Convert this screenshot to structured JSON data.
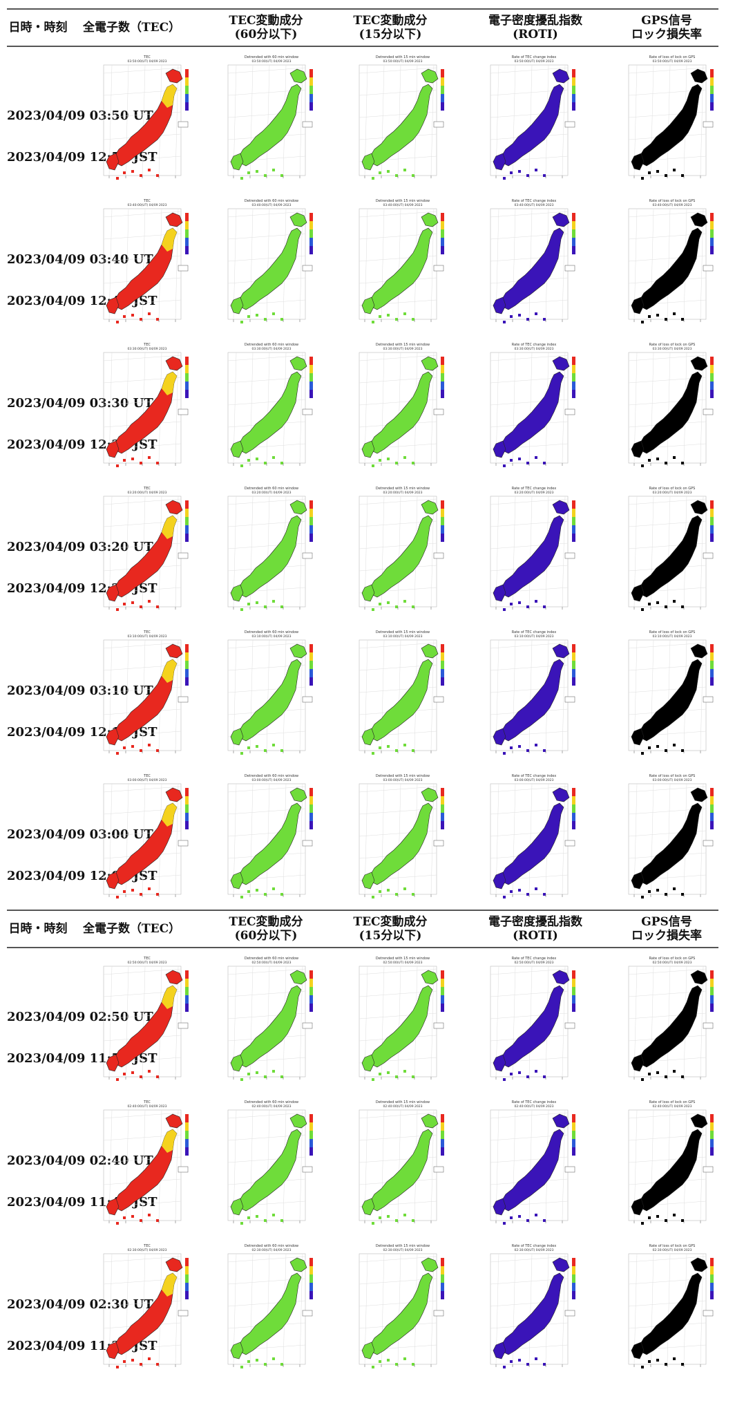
{
  "header": {
    "datetime": "日時・時刻",
    "tec": "全電子数（TEC）",
    "tec60_l1": "TEC変動成分",
    "tec60_l2": "(60分以下)",
    "tec15_l1": "TEC変動成分",
    "tec15_l2": "(15分以下)",
    "roti_l1": "電子密度擾乱指数",
    "roti_l2": "(ROTI)",
    "gps_l1": "GPS信号",
    "gps_l2": "ロック損失率"
  },
  "map_titles": {
    "tec": "TEC",
    "tec60": "Detrended with 60 min window",
    "tec15": "Detrended with 15 min window",
    "roti": "Rate of TEC change index",
    "gps": "Rate of loss of lock on GPS"
  },
  "colors": {
    "tec_fill": "#e8281f",
    "tec_north": "#f4d21e",
    "fluct_fill": "#6fdc3a",
    "roti_fill": "#3a14b8",
    "gps_fill": "#000000",
    "rule": "#555555"
  },
  "rows_top": [
    {
      "ut": "2023/04/09 03:50 UT",
      "jst": "2023/04/09 12:50 JST",
      "stamp": "03:50:00(UT) 04/09 2023"
    },
    {
      "ut": "2023/04/09 03:40 UT",
      "jst": "2023/04/09 12:40 JST",
      "stamp": "03:40:00(UT) 04/09 2023"
    },
    {
      "ut": "2023/04/09 03:30 UT",
      "jst": "2023/04/09 12:30 JST",
      "stamp": "03:30:00(UT) 04/09 2023"
    },
    {
      "ut": "2023/04/09 03:20 UT",
      "jst": "2023/04/09 12:20 JST",
      "stamp": "03:20:00(UT) 04/09 2023"
    },
    {
      "ut": "2023/04/09 03:10 UT",
      "jst": "2023/04/09 12:10 JST",
      "stamp": "03:10:00(UT) 04/09 2023"
    },
    {
      "ut": "2023/04/09 03:00 UT",
      "jst": "2023/04/09 12:00 JST",
      "stamp": "03:00:00(UT) 04/09 2023"
    }
  ],
  "rows_bottom": [
    {
      "ut": "2023/04/09 02:50 UT",
      "jst": "2023/04/09 11:50 JST",
      "stamp": "02:50:00(UT) 04/09 2023"
    },
    {
      "ut": "2023/04/09 02:40 UT",
      "jst": "2023/04/09 11:40 JST",
      "stamp": "02:40:00(UT) 04/09 2023"
    },
    {
      "ut": "2023/04/09 02:30 UT",
      "jst": "2023/04/09 11:30 JST",
      "stamp": "02:30:00(UT) 04/09 2023"
    }
  ]
}
